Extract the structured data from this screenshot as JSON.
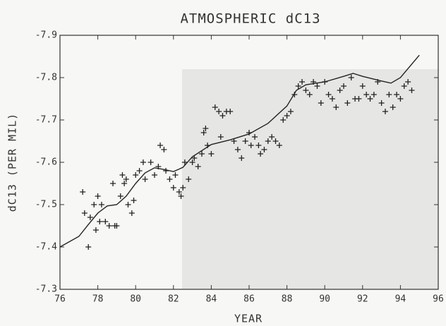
{
  "chart_data": {
    "type": "scatter",
    "title": "ATMOSPHERIC dC13",
    "x_label": "YEAR",
    "y_label": "dC13 (PER MIL)",
    "xlim": [
      76,
      96
    ],
    "xticks": [
      76,
      78,
      80,
      82,
      84,
      86,
      88,
      90,
      92,
      94,
      96
    ],
    "ylim": [
      -7.3,
      -7.9
    ],
    "yticks": [
      -7.3,
      -7.4,
      -7.5,
      -7.6,
      -7.7,
      -7.8,
      -7.9
    ],
    "color": "#222",
    "series": [
      {
        "type": "scatter",
        "color": "#222",
        "x": [
          77.2,
          77.3,
          77.5,
          77.6,
          77.8,
          77.9,
          78.0,
          78.1,
          78.2,
          78.4,
          78.6,
          78.8,
          78.9,
          79.0,
          79.2,
          79.3,
          79.4,
          79.5,
          79.6,
          79.8,
          79.9,
          80.0,
          80.2,
          80.4,
          80.5,
          80.8,
          81.0,
          81.2,
          81.3,
          81.5,
          81.6,
          81.8,
          82.0,
          82.1,
          82.3,
          82.4,
          82.5,
          82.6,
          82.8,
          83.0,
          83.1,
          83.3,
          83.5,
          83.6,
          83.7,
          83.8,
          84.0,
          84.2,
          84.4,
          84.5,
          84.6,
          84.8,
          85.0,
          85.2,
          85.4,
          85.6,
          85.8,
          86.0,
          86.1,
          86.3,
          86.5,
          86.6,
          86.8,
          87.0,
          87.2,
          87.4,
          87.6,
          87.8,
          88.0,
          88.2,
          88.4,
          88.6,
          88.8,
          89.0,
          89.2,
          89.4,
          89.6,
          89.8,
          90.0,
          90.2,
          90.4,
          90.6,
          90.8,
          91.0,
          91.2,
          91.4,
          91.6,
          91.8,
          92.0,
          92.2,
          92.4,
          92.6,
          92.8,
          93.0,
          93.2,
          93.4,
          93.6,
          93.8,
          94.0,
          94.2,
          94.4,
          94.6
        ],
        "values": [
          -7.53,
          -7.48,
          -7.4,
          -7.47,
          -7.5,
          -7.44,
          -7.52,
          -7.46,
          -7.5,
          -7.46,
          -7.45,
          -7.55,
          -7.45,
          -7.45,
          -7.52,
          -7.57,
          -7.55,
          -7.56,
          -7.5,
          -7.48,
          -7.51,
          -7.57,
          -7.58,
          -7.6,
          -7.56,
          -7.6,
          -7.57,
          -7.59,
          -7.64,
          -7.63,
          -7.58,
          -7.56,
          -7.54,
          -7.57,
          -7.53,
          -7.52,
          -7.54,
          -7.6,
          -7.56,
          -7.6,
          -7.61,
          -7.59,
          -7.62,
          -7.67,
          -7.68,
          -7.64,
          -7.62,
          -7.73,
          -7.72,
          -7.66,
          -7.71,
          -7.72,
          -7.72,
          -7.65,
          -7.63,
          -7.61,
          -7.65,
          -7.67,
          -7.64,
          -7.66,
          -7.64,
          -7.62,
          -7.63,
          -7.65,
          -7.66,
          -7.65,
          -7.64,
          -7.7,
          -7.71,
          -7.72,
          -7.76,
          -7.78,
          -7.79,
          -7.77,
          -7.76,
          -7.79,
          -7.78,
          -7.74,
          -7.79,
          -7.76,
          -7.75,
          -7.73,
          -7.77,
          -7.78,
          -7.74,
          -7.8,
          -7.75,
          -7.75,
          -7.78,
          -7.76,
          -7.75,
          -7.76,
          -7.79,
          -7.74,
          -7.72,
          -7.76,
          -7.73,
          -7.76,
          -7.75,
          -7.78,
          -7.79,
          -7.77
        ]
      },
      {
        "type": "line",
        "color": "#222",
        "x": [
          76,
          77,
          77.5,
          78,
          78.5,
          79,
          79.5,
          80,
          80.5,
          81,
          81.5,
          82,
          82.5,
          83,
          84,
          85,
          86,
          87,
          88,
          88.5,
          89,
          90,
          91,
          91.5,
          92,
          93,
          93.5,
          94,
          95
        ],
        "values": [
          -7.4,
          -7.425,
          -7.453,
          -7.48,
          -7.497,
          -7.5,
          -7.52,
          -7.55,
          -7.575,
          -7.587,
          -7.583,
          -7.578,
          -7.588,
          -7.613,
          -7.642,
          -7.653,
          -7.667,
          -7.692,
          -7.733,
          -7.77,
          -7.783,
          -7.79,
          -7.803,
          -7.81,
          -7.803,
          -7.792,
          -7.787,
          -7.8,
          -7.853
        ]
      }
    ]
  }
}
